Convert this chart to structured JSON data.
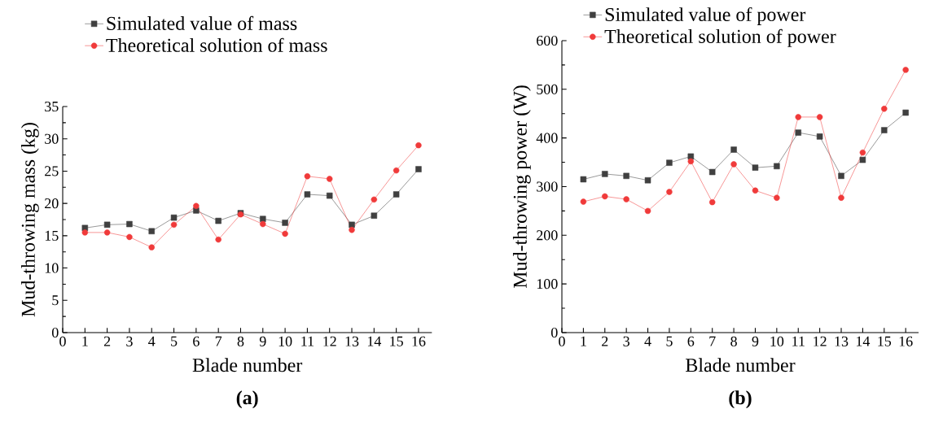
{
  "chart_data": [
    {
      "type": "line",
      "xlabel": "Blade number",
      "ylabel": "Mud-throwing mass (kg)",
      "annotations": [
        "(a)"
      ],
      "x": [
        1,
        2,
        3,
        4,
        5,
        6,
        7,
        8,
        9,
        10,
        11,
        12,
        13,
        14,
        15,
        16
      ],
      "xlim": [
        0,
        16.6
      ],
      "xticks": [
        0,
        1,
        2,
        3,
        4,
        5,
        6,
        7,
        8,
        9,
        10,
        11,
        12,
        13,
        14,
        15,
        16
      ],
      "ylim": [
        0,
        35
      ],
      "yticks": [
        0,
        5,
        10,
        15,
        20,
        25,
        30,
        35
      ],
      "grid": false,
      "legend": "top left",
      "series": [
        {
          "name": "Simulated value of mass",
          "color": "#404040",
          "marker": "square",
          "values": [
            16.2,
            16.7,
            16.8,
            15.7,
            17.8,
            18.9,
            17.3,
            18.5,
            17.6,
            17.0,
            21.4,
            21.2,
            16.7,
            18.1,
            21.4,
            25.3
          ]
        },
        {
          "name": "Theoretical solution of mass",
          "color": "#f03a3a",
          "marker": "circle",
          "values": [
            15.5,
            15.5,
            14.8,
            13.2,
            16.7,
            19.6,
            14.4,
            18.3,
            16.8,
            15.3,
            24.2,
            23.8,
            15.9,
            20.6,
            25.1,
            29.0
          ]
        }
      ]
    },
    {
      "type": "line",
      "xlabel": "Blade number",
      "ylabel": "Mud-throwing power (W)",
      "annotations": [
        "(b)"
      ],
      "x": [
        1,
        2,
        3,
        4,
        5,
        6,
        7,
        8,
        9,
        10,
        11,
        12,
        13,
        14,
        15,
        16
      ],
      "xlim": [
        0,
        16.6
      ],
      "xticks": [
        0,
        1,
        2,
        3,
        4,
        5,
        6,
        7,
        8,
        9,
        10,
        11,
        12,
        13,
        14,
        15,
        16
      ],
      "ylim": [
        0,
        600
      ],
      "yticks": [
        0,
        100,
        200,
        300,
        400,
        500,
        600
      ],
      "grid": false,
      "legend": "top left",
      "series": [
        {
          "name": "Simulated value of power",
          "color": "#404040",
          "marker": "square",
          "values": [
            315,
            326,
            322,
            313,
            349,
            362,
            330,
            376,
            339,
            342,
            411,
            403,
            322,
            355,
            416,
            452
          ]
        },
        {
          "name": "Theoretical solution of power",
          "color": "#f03a3a",
          "marker": "circle",
          "values": [
            269,
            280,
            274,
            250,
            289,
            352,
            268,
            346,
            292,
            277,
            443,
            443,
            277,
            370,
            460,
            540
          ]
        }
      ]
    }
  ]
}
